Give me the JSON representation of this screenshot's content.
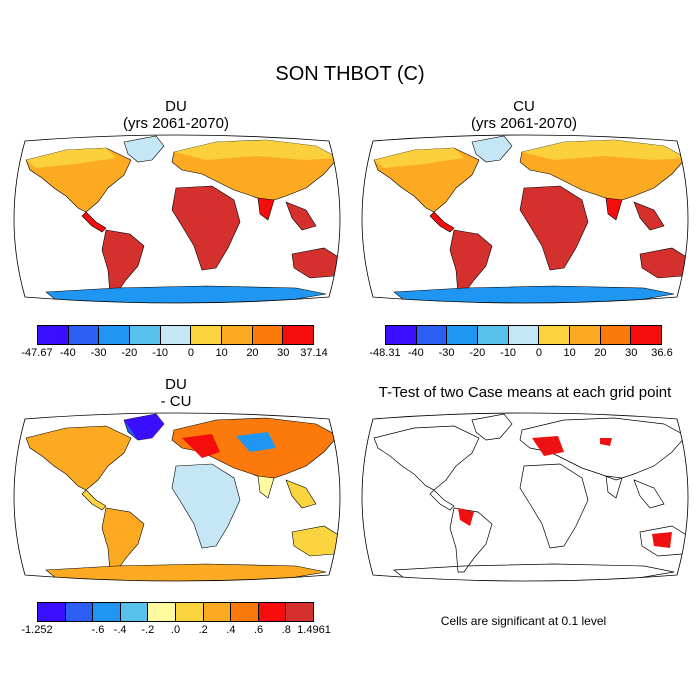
{
  "figure": {
    "title": "SON THBOT (C)"
  },
  "colors": {
    "main_scale": [
      "#3a0fff",
      "#2b5ef2",
      "#1f96f2",
      "#59c1ee",
      "#c4e6f5",
      "#fad43f",
      "#fdaa23",
      "#fb7a0b",
      "#f40d0c",
      "#d4302d"
    ],
    "diff_scale": [
      "#3a0fff",
      "#2b5ef2",
      "#1f96f2",
      "#59c1ee",
      "#c4e6f5",
      "#fffaa0",
      "#fad43f",
      "#fdaa23",
      "#fb7a0b",
      "#f40d0c",
      "#d4302d"
    ],
    "land_outline": "#000000",
    "ttest_fill": "#ee1111"
  },
  "panels": {
    "du": {
      "title": "DU",
      "subtitle": "(yrs 2061-2070)",
      "colorbar_labels": [
        "-47.67",
        "-40",
        "-30",
        "-20",
        "-10",
        "0",
        "10",
        "20",
        "30",
        "37.14"
      ]
    },
    "cu": {
      "title": "CU",
      "subtitle": "(yrs 2061-2070)",
      "colorbar_labels": [
        "-48.31",
        "-40",
        "-30",
        "-20",
        "-10",
        "0",
        "10",
        "20",
        "30",
        "36.6"
      ]
    },
    "diff": {
      "title": "DU",
      "subtitle": "- CU",
      "colorbar_labels": [
        "-1.252",
        ".6",
        "-.4",
        "-.2",
        ".0",
        ".2",
        ".4",
        ".6",
        ".8",
        "1.4961"
      ]
    },
    "ttest": {
      "title": "T-Test of two Case means at each grid point",
      "note": "Cells are significant at 0.1 level"
    }
  }
}
